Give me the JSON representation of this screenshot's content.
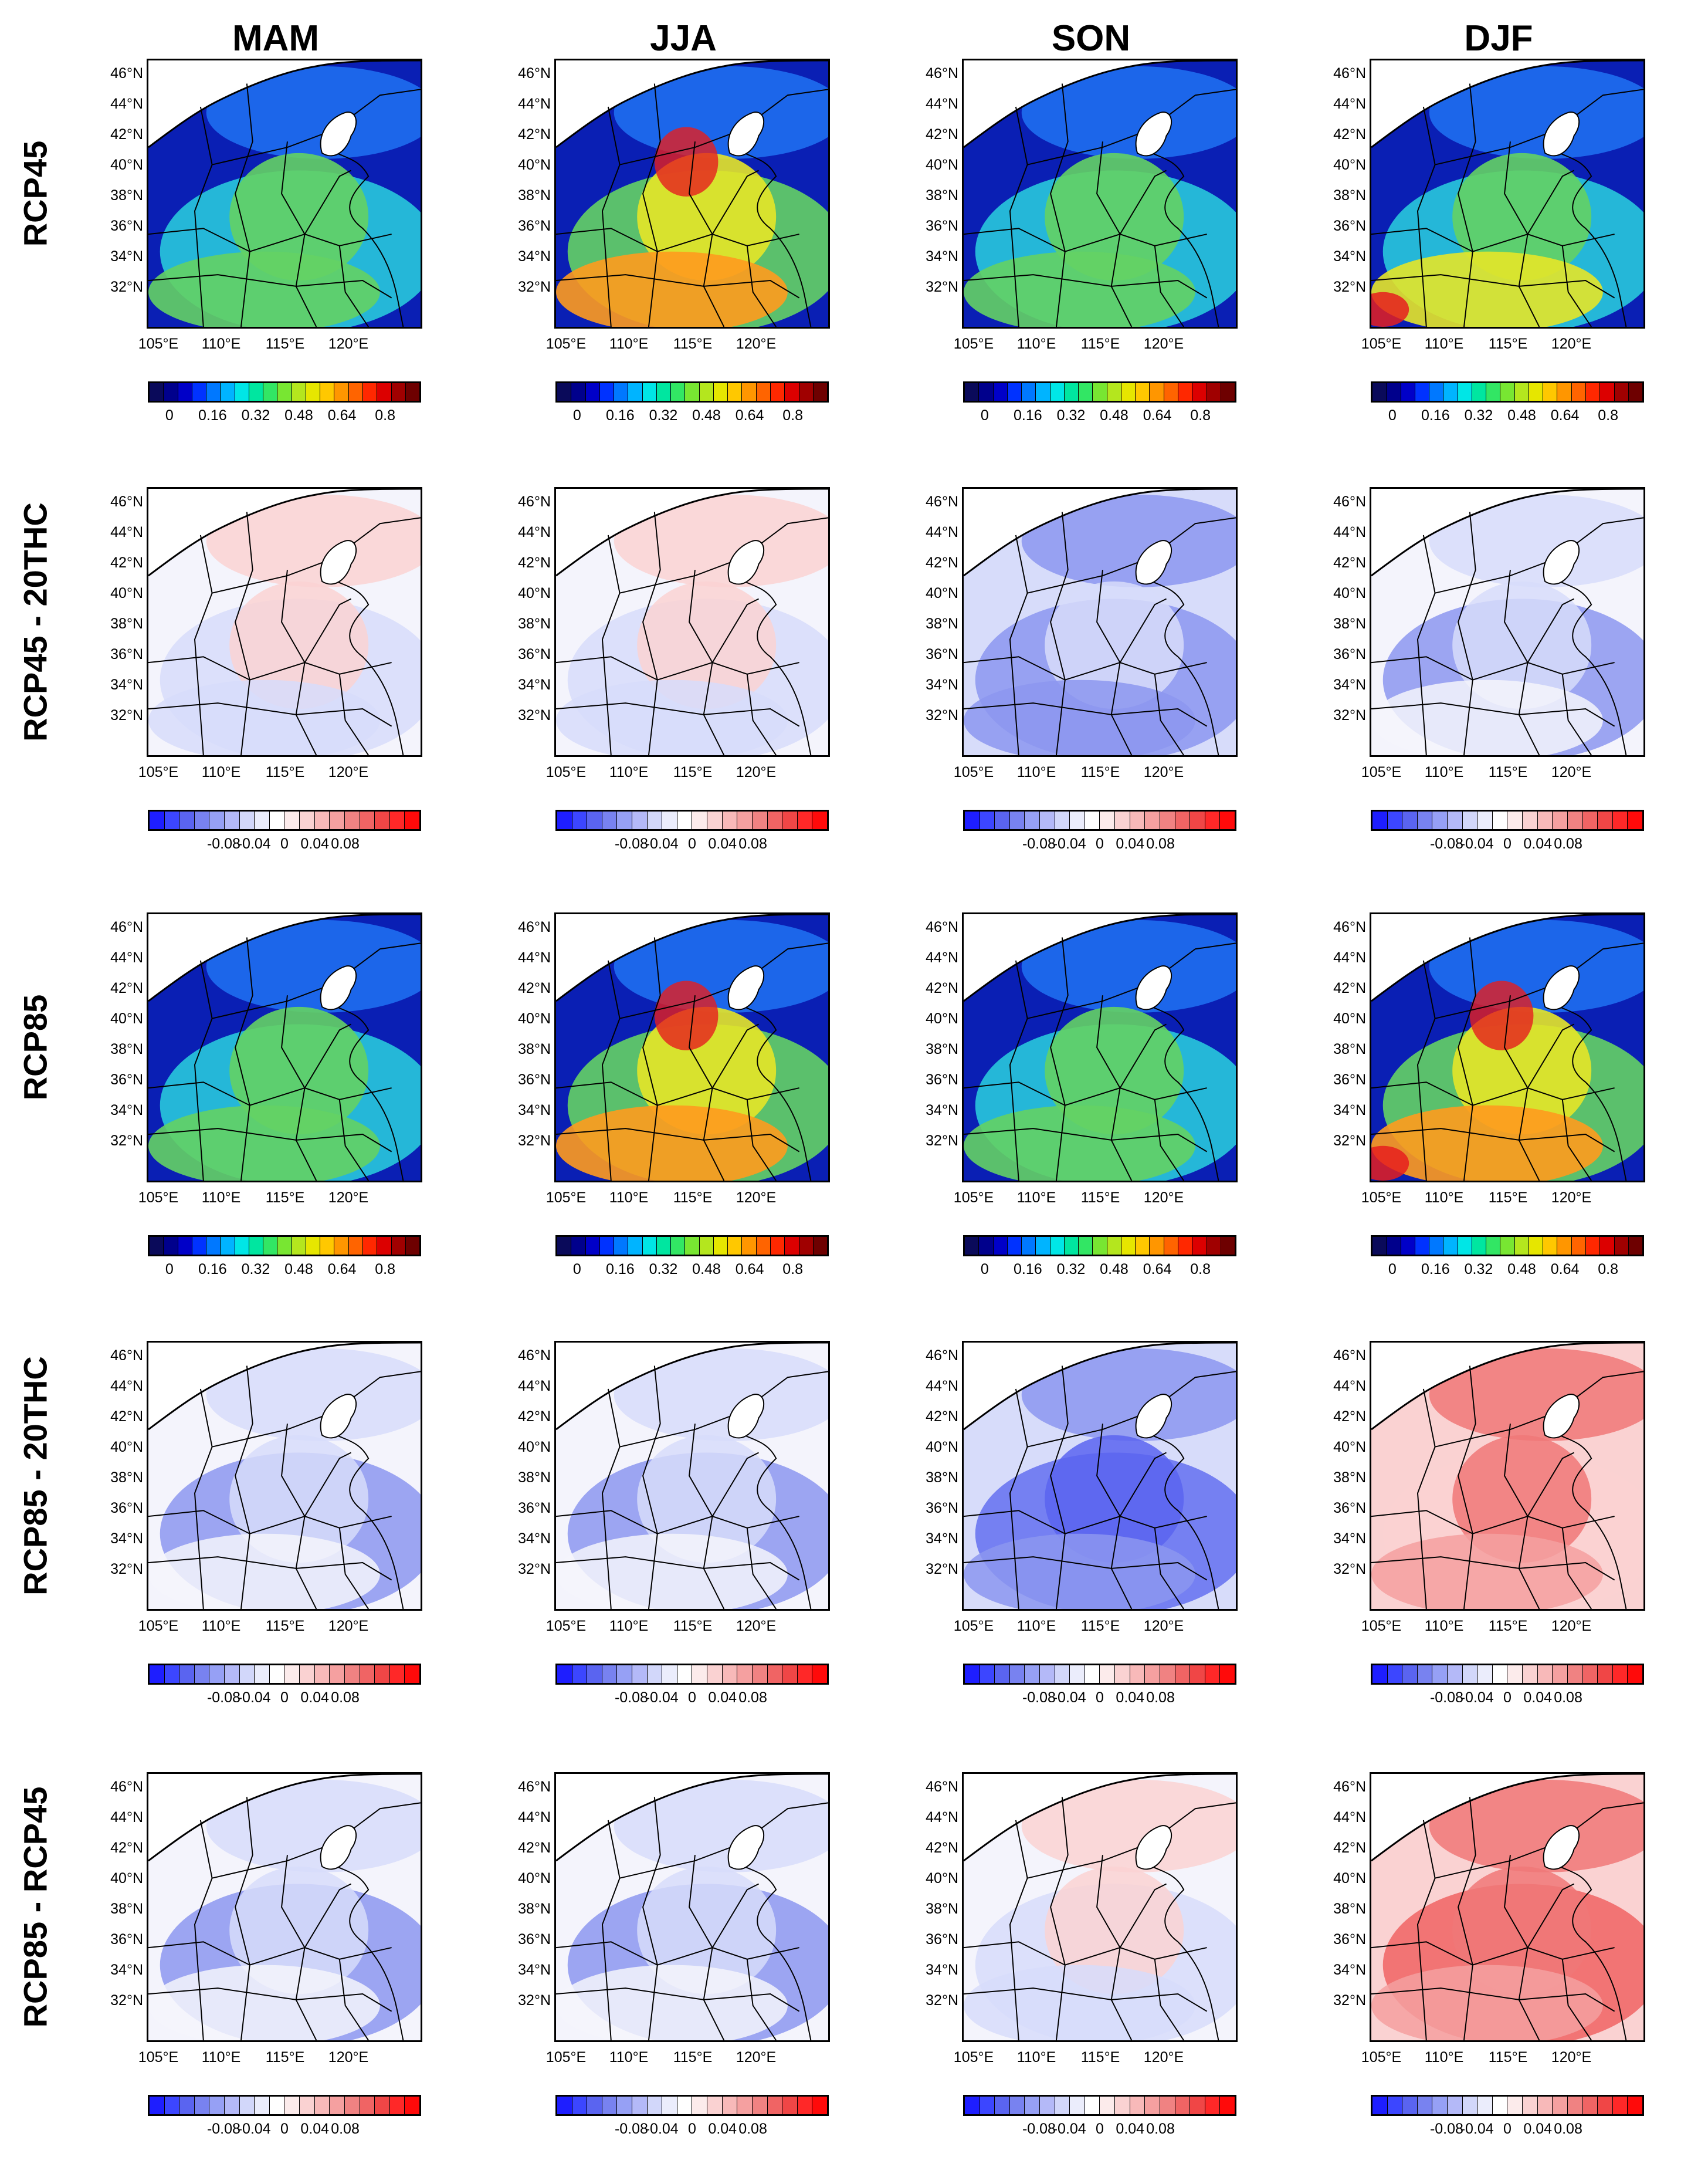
{
  "column_titles": [
    "MAM",
    "JJA",
    "SON",
    "DJF"
  ],
  "row_titles": [
    "RCP45",
    "RCP45 - 20THC",
    "RCP85",
    "RCP85 - 20THC",
    "RCP85 - RCP45"
  ],
  "lat_labels": [
    "46°N",
    "44°N",
    "42°N",
    "40°N",
    "38°N",
    "36°N",
    "34°N",
    "32°N"
  ],
  "lon_labels": [
    "105°E",
    "110°E",
    "115°E",
    "120°E"
  ],
  "colorbars": {
    "absolute": {
      "ticks": [
        "0",
        "0.16",
        "0.32",
        "0.48",
        "0.64",
        "0.8"
      ],
      "colors": [
        "#0a0a5a",
        "#00008c",
        "#0000c8",
        "#0032ff",
        "#0078ff",
        "#00b4ff",
        "#00e6e6",
        "#00e6a0",
        "#32e664",
        "#78e632",
        "#b4e61e",
        "#e6e600",
        "#ffc800",
        "#ff9600",
        "#ff6400",
        "#ff2800",
        "#dc0000",
        "#a00000",
        "#6e0000"
      ]
    },
    "difference": {
      "ticks": [
        "-0.08",
        "-0.04",
        "0",
        "0.04",
        "0.08"
      ],
      "colors": [
        "#1e1eff",
        "#3c46ff",
        "#5a64f0",
        "#7882f0",
        "#96a0f5",
        "#b4b9f8",
        "#d2d7fa",
        "#ebedfc",
        "#ffffff",
        "#fcebeb",
        "#fad2d2",
        "#f8b9b9",
        "#f5a0a0",
        "#f08282",
        "#f06464",
        "#f04646",
        "#ff2828",
        "#ff0a0a"
      ]
    }
  },
  "panel_fields": {
    "RCP45": {
      "MAM": "abs-mid",
      "JJA": "abs-high",
      "SON": "abs-mid",
      "DJF": "abs-midhigh"
    },
    "RCP45 - 20THC": {
      "MAM": "diff-mixed-pos",
      "JJA": "diff-mixed-pos",
      "SON": "diff-neg",
      "DJF": "diff-neg-light"
    },
    "RCP85": {
      "MAM": "abs-mid",
      "JJA": "abs-high",
      "SON": "abs-mid",
      "DJF": "abs-highest"
    },
    "RCP85 - 20THC": {
      "MAM": "diff-neg-light",
      "JJA": "diff-neg-light",
      "SON": "diff-neg-strong",
      "DJF": "diff-pos"
    },
    "RCP85 - RCP45": {
      "MAM": "diff-neg-light",
      "JJA": "diff-neg-light",
      "SON": "diff-mixed-pos",
      "DJF": "diff-pos-strong"
    }
  },
  "palette": {
    "land_blue_dark": "#0a1fb4",
    "land_blue": "#1e6ef0",
    "land_cyan": "#28c8dc",
    "land_green": "#64d264",
    "land_yellow": "#e6e628",
    "land_orange": "#ff9b1e",
    "land_red": "#e61e1e",
    "diff_blue": "#8c96f0",
    "diff_lightblue": "#d7dcfa",
    "diff_white": "#f4f4fc",
    "diff_pink": "#fad2d2",
    "diff_red": "#f07878",
    "lake": "#ffffff"
  }
}
